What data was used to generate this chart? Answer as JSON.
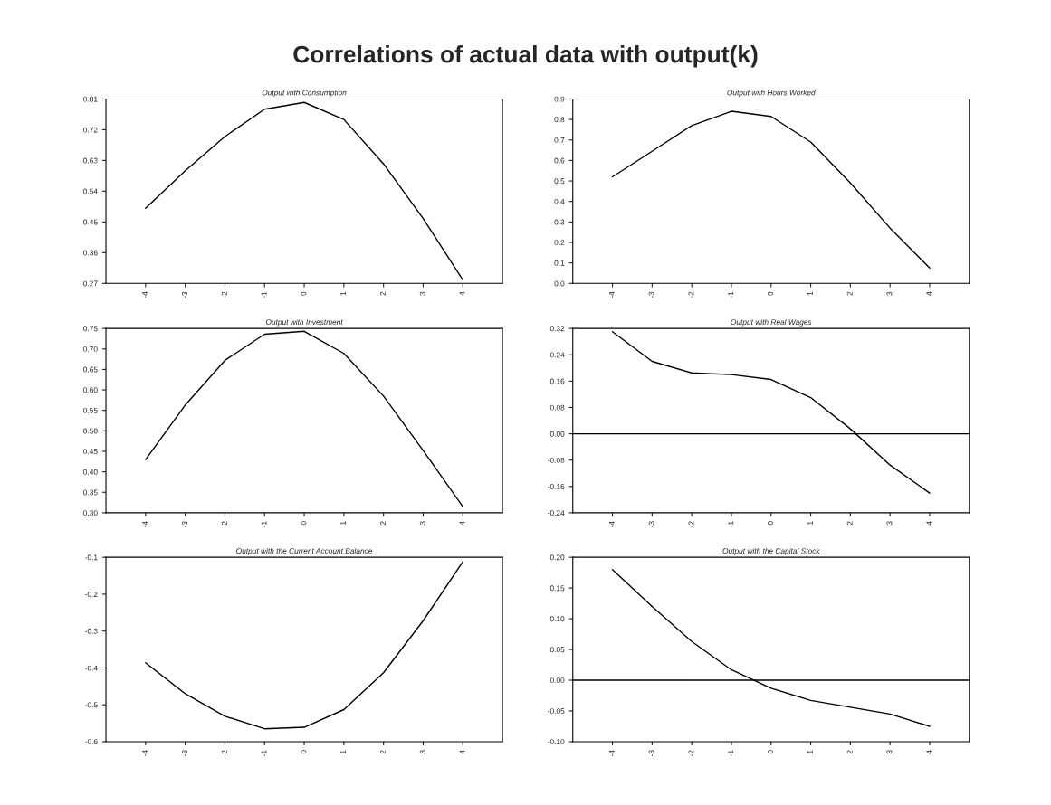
{
  "chart_data": [
    {
      "type": "line",
      "title": "Output with Consumption",
      "annotations": [
        "Correlations of actual data with output(k)"
      ],
      "x": [
        -4,
        -3,
        -2,
        -1,
        0,
        1,
        2,
        3,
        4
      ],
      "series": [
        {
          "color": "#000000",
          "values": [
            0.49,
            0.6,
            0.7,
            0.78,
            0.8,
            0.75,
            0.62,
            0.46,
            0.28
          ]
        }
      ],
      "xlim": [
        -5,
        5
      ],
      "xticks": [
        -4,
        -3,
        -2,
        -1,
        0,
        1,
        2,
        3,
        4
      ],
      "ylim": [
        0.27,
        0.81
      ],
      "yticks": [
        {
          "value": 0.27,
          "label": "0.27"
        },
        {
          "value": 0.36,
          "label": "0.36"
        },
        {
          "value": 0.45,
          "label": "0.45"
        },
        {
          "value": 0.54,
          "label": "0.54"
        },
        {
          "value": 0.63,
          "label": "0.63"
        },
        {
          "value": 0.72,
          "label": "0.72"
        },
        {
          "value": 0.81,
          "label": "0.81"
        }
      ],
      "grid": false,
      "legend": false
    },
    {
      "type": "line",
      "title": "Output with Hours Worked",
      "x": [
        -4,
        -3,
        -2,
        -1,
        0,
        1,
        2,
        3,
        4
      ],
      "series": [
        {
          "color": "#000000",
          "values": [
            0.52,
            0.645,
            0.77,
            0.84,
            0.815,
            0.69,
            0.49,
            0.27,
            0.075
          ]
        }
      ],
      "xlim": [
        -5,
        5
      ],
      "xticks": [
        -4,
        -3,
        -2,
        -1,
        0,
        1,
        2,
        3,
        4
      ],
      "ylim": [
        0.0,
        0.9
      ],
      "yticks": [
        {
          "value": 0.0,
          "label": "0.0"
        },
        {
          "value": 0.1,
          "label": "0.1"
        },
        {
          "value": 0.2,
          "label": "0.2"
        },
        {
          "value": 0.3,
          "label": "0.3"
        },
        {
          "value": 0.4,
          "label": "0.4"
        },
        {
          "value": 0.5,
          "label": "0.5"
        },
        {
          "value": 0.6,
          "label": "0.6"
        },
        {
          "value": 0.7,
          "label": "0.7"
        },
        {
          "value": 0.8,
          "label": "0.8"
        },
        {
          "value": 0.9,
          "label": "0.9"
        }
      ],
      "grid": false,
      "legend": false
    },
    {
      "type": "line",
      "title": "Output with Investment",
      "x": [
        -4,
        -3,
        -2,
        -1,
        0,
        1,
        2,
        3,
        4
      ],
      "series": [
        {
          "color": "#000000",
          "values": [
            0.43,
            0.563,
            0.672,
            0.736,
            0.743,
            0.689,
            0.585,
            0.452,
            0.315
          ]
        }
      ],
      "xlim": [
        -5,
        5
      ],
      "xticks": [
        -4,
        -3,
        -2,
        -1,
        0,
        1,
        2,
        3,
        4
      ],
      "ylim": [
        0.3,
        0.75
      ],
      "yticks": [
        {
          "value": 0.3,
          "label": "0.30"
        },
        {
          "value": 0.35,
          "label": "0.35"
        },
        {
          "value": 0.4,
          "label": "0.40"
        },
        {
          "value": 0.45,
          "label": "0.45"
        },
        {
          "value": 0.5,
          "label": "0.50"
        },
        {
          "value": 0.55,
          "label": "0.55"
        },
        {
          "value": 0.6,
          "label": "0.60"
        },
        {
          "value": 0.65,
          "label": "0.65"
        },
        {
          "value": 0.7,
          "label": "0.70"
        },
        {
          "value": 0.75,
          "label": "0.75"
        }
      ],
      "grid": false,
      "legend": false
    },
    {
      "type": "line",
      "title": "Output with Real Wages",
      "x": [
        -4,
        -3,
        -2,
        -1,
        0,
        1,
        2,
        3,
        4
      ],
      "series": [
        {
          "color": "#000000",
          "values": [
            0.31,
            0.22,
            0.185,
            0.18,
            0.165,
            0.11,
            0.015,
            -0.095,
            -0.18
          ]
        }
      ],
      "xlim": [
        -5,
        5
      ],
      "xticks": [
        -4,
        -3,
        -2,
        -1,
        0,
        1,
        2,
        3,
        4
      ],
      "ylim": [
        -0.24,
        0.32
      ],
      "yticks": [
        {
          "value": -0.24,
          "label": "-0.24"
        },
        {
          "value": -0.16,
          "label": "-0.16"
        },
        {
          "value": -0.08,
          "label": "-0.08"
        },
        {
          "value": 0.0,
          "label": "0.00"
        },
        {
          "value": 0.08,
          "label": "0.08"
        },
        {
          "value": 0.16,
          "label": "0.16"
        },
        {
          "value": 0.24,
          "label": "0.24"
        },
        {
          "value": 0.32,
          "label": "0.32"
        }
      ],
      "ref_lines": [
        {
          "axis": "y",
          "value": 0,
          "color": "#000000"
        }
      ],
      "grid": false,
      "legend": false
    },
    {
      "type": "line",
      "title": "Output with the Current Account Balance",
      "x": [
        -4,
        -3,
        -2,
        -1,
        0,
        1,
        2,
        3,
        4
      ],
      "series": [
        {
          "color": "#000000",
          "values": [
            -0.386,
            -0.47,
            -0.531,
            -0.565,
            -0.561,
            -0.513,
            -0.413,
            -0.272,
            -0.112
          ]
        }
      ],
      "xlim": [
        -5,
        5
      ],
      "xticks": [
        -4,
        -3,
        -2,
        -1,
        0,
        1,
        2,
        3,
        4
      ],
      "ylim": [
        -0.6,
        -0.1
      ],
      "yticks": [
        {
          "value": -0.6,
          "label": "-0.6"
        },
        {
          "value": -0.5,
          "label": "-0.5"
        },
        {
          "value": -0.4,
          "label": "-0.4"
        },
        {
          "value": -0.3,
          "label": "-0.3"
        },
        {
          "value": -0.2,
          "label": "-0.2"
        },
        {
          "value": -0.1,
          "label": "-0.1"
        }
      ],
      "grid": false,
      "legend": false
    },
    {
      "type": "line",
      "title": "Output with the Capital Stock",
      "x": [
        -4,
        -3,
        -2,
        -1,
        0,
        1,
        2,
        3,
        4
      ],
      "series": [
        {
          "color": "#000000",
          "values": [
            0.18,
            0.12,
            0.063,
            0.017,
            -0.013,
            -0.033,
            -0.044,
            -0.055,
            -0.075
          ]
        }
      ],
      "xlim": [
        -5,
        5
      ],
      "xticks": [
        -4,
        -3,
        -2,
        -1,
        0,
        1,
        2,
        3,
        4
      ],
      "ylim": [
        -0.1,
        0.2
      ],
      "yticks": [
        {
          "value": -0.1,
          "label": "-0.10"
        },
        {
          "value": -0.05,
          "label": "-0.05"
        },
        {
          "value": 0.0,
          "label": "0.00"
        },
        {
          "value": 0.05,
          "label": "0.05"
        },
        {
          "value": 0.1,
          "label": "0.10"
        },
        {
          "value": 0.15,
          "label": "0.15"
        },
        {
          "value": 0.2,
          "label": "0.20"
        }
      ],
      "ref_lines": [
        {
          "axis": "y",
          "value": 0,
          "color": "#000000"
        }
      ],
      "grid": false,
      "legend": false
    }
  ]
}
